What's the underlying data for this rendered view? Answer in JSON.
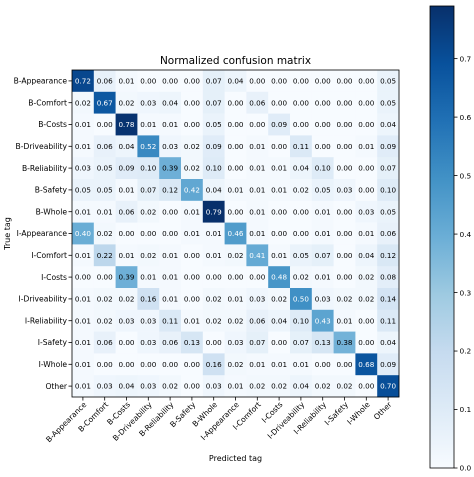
{
  "chart_data": {
    "type": "heatmap",
    "title": "Normalized confusion matrix",
    "xlabel": "Predicted tag",
    "ylabel": "True tag",
    "labels": [
      "B-Appearance",
      "B-Comfort",
      "B-Costs",
      "B-Driveability",
      "B-Reliability",
      "B-Safety",
      "B-Whole",
      "I-Appearance",
      "I-Comfort",
      "I-Costs",
      "I-Driveability",
      "I-Reliability",
      "I-Safety",
      "I-Whole",
      "Other"
    ],
    "matrix": [
      [
        "0.72",
        "0.06",
        "0.01",
        "0.00",
        "0.00",
        "0.00",
        "0.07",
        "0.04",
        "0.00",
        "0.00",
        "0.00",
        "0.00",
        "0.00",
        "0.00",
        "0.05"
      ],
      [
        "0.02",
        "0.67",
        "0.02",
        "0.03",
        "0.04",
        "0.00",
        "0.07",
        "0.00",
        "0.06",
        "0.00",
        "0.00",
        "0.00",
        "0.00",
        "0.00",
        "0.05"
      ],
      [
        "0.01",
        "0.00",
        "0.78",
        "0.01",
        "0.01",
        "0.00",
        "0.05",
        "0.00",
        "0.00",
        "0.09",
        "0.00",
        "0.00",
        "0.00",
        "0.00",
        "0.04"
      ],
      [
        "0.01",
        "0.06",
        "0.04",
        "0.52",
        "0.03",
        "0.02",
        "0.09",
        "0.00",
        "0.01",
        "0.00",
        "0.11",
        "0.00",
        "0.00",
        "0.01",
        "0.09"
      ],
      [
        "0.03",
        "0.05",
        "0.09",
        "0.10",
        "0.39",
        "0.02",
        "0.10",
        "0.00",
        "0.01",
        "0.01",
        "0.04",
        "0.10",
        "0.00",
        "0.00",
        "0.07"
      ],
      [
        "0.05",
        "0.05",
        "0.01",
        "0.07",
        "0.12",
        "0.42",
        "0.04",
        "0.01",
        "0.01",
        "0.01",
        "0.02",
        "0.05",
        "0.03",
        "0.00",
        "0.10"
      ],
      [
        "0.01",
        "0.01",
        "0.06",
        "0.02",
        "0.00",
        "0.01",
        "0.79",
        "0.00",
        "0.01",
        "0.00",
        "0.00",
        "0.01",
        "0.00",
        "0.03",
        "0.05"
      ],
      [
        "0.40",
        "0.02",
        "0.00",
        "0.00",
        "0.00",
        "0.01",
        "0.01",
        "0.46",
        "0.01",
        "0.00",
        "0.00",
        "0.01",
        "0.00",
        "0.01",
        "0.06"
      ],
      [
        "0.01",
        "0.22",
        "0.01",
        "0.02",
        "0.01",
        "0.00",
        "0.01",
        "0.02",
        "0.41",
        "0.01",
        "0.05",
        "0.07",
        "0.00",
        "0.04",
        "0.12"
      ],
      [
        "0.00",
        "0.00",
        "0.39",
        "0.01",
        "0.01",
        "0.00",
        "0.00",
        "0.00",
        "0.00",
        "0.48",
        "0.02",
        "0.01",
        "0.00",
        "0.02",
        "0.08"
      ],
      [
        "0.01",
        "0.02",
        "0.02",
        "0.16",
        "0.01",
        "0.00",
        "0.02",
        "0.01",
        "0.03",
        "0.02",
        "0.50",
        "0.03",
        "0.02",
        "0.02",
        "0.14"
      ],
      [
        "0.01",
        "0.02",
        "0.03",
        "0.03",
        "0.11",
        "0.01",
        "0.02",
        "0.02",
        "0.06",
        "0.04",
        "0.10",
        "0.43",
        "0.01",
        "0.00",
        "0.11"
      ],
      [
        "0.01",
        "0.06",
        "0.00",
        "0.03",
        "0.06",
        "0.13",
        "0.00",
        "0.03",
        "0.07",
        "0.00",
        "0.07",
        "0.13",
        "0.38",
        "0.00",
        "0.04"
      ],
      [
        "0.01",
        "0.00",
        "0.00",
        "0.00",
        "0.00",
        "0.00",
        "0.16",
        "0.02",
        "0.01",
        "0.01",
        "0.01",
        "0.00",
        "0.00",
        "0.68",
        "0.09"
      ],
      [
        "0.01",
        "0.03",
        "0.04",
        "0.03",
        "0.02",
        "0.00",
        "0.03",
        "0.01",
        "0.02",
        "0.02",
        "0.04",
        "0.02",
        "0.02",
        "0.00",
        "0.70"
      ]
    ],
    "colorbar": {
      "ticks": [
        "0.0",
        "0.1",
        "0.2",
        "0.3",
        "0.4",
        "0.5",
        "0.6",
        "0.7"
      ],
      "range": [
        0,
        0.79
      ],
      "colormap": "Blues",
      "low_color": "#f7fbff",
      "high_color": "#08306b"
    },
    "grid": false,
    "legend": "colorbar right"
  }
}
